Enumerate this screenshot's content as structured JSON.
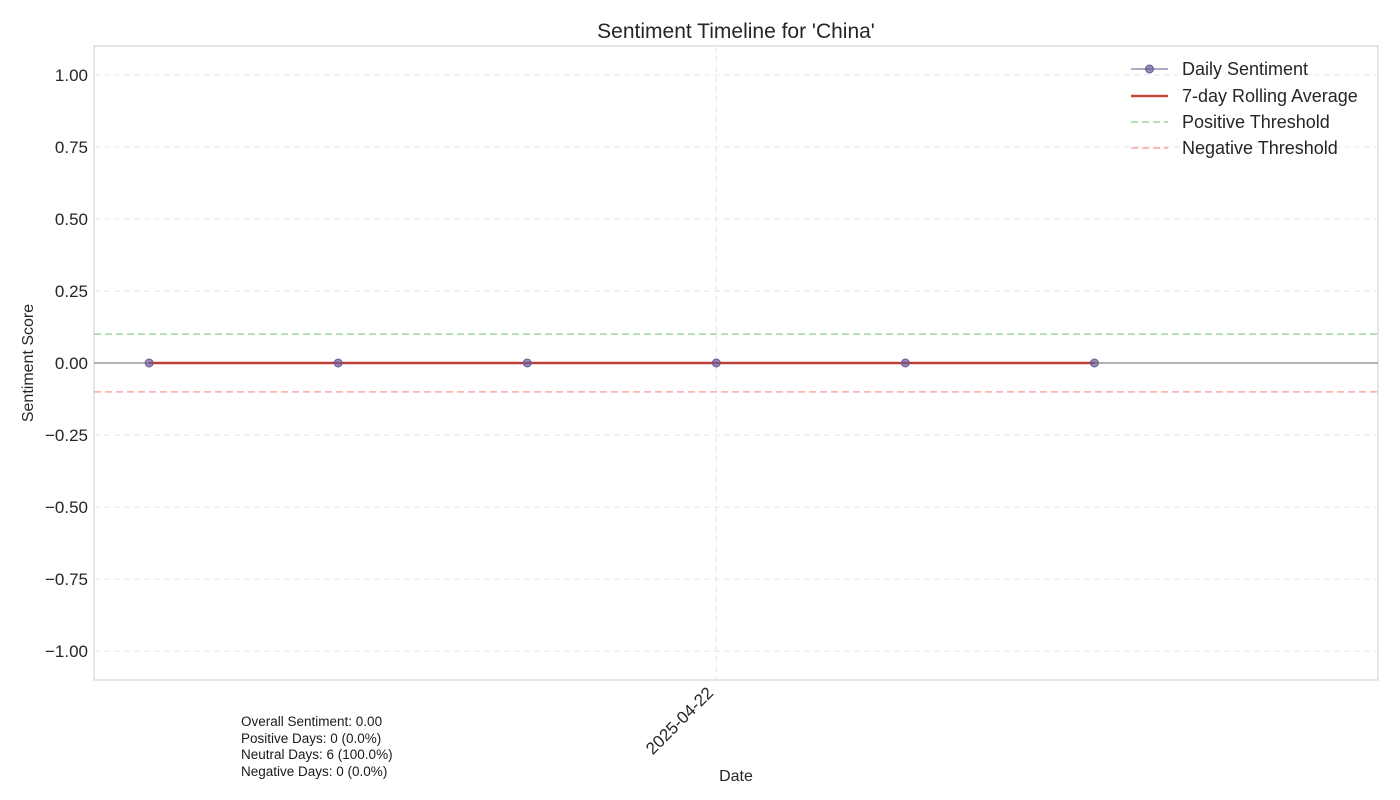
{
  "chart_data": {
    "type": "line",
    "title": "Sentiment Timeline for 'China'",
    "xlabel": "Date",
    "ylabel": "Sentiment Score",
    "ylim": [
      -1.1,
      1.1
    ],
    "xlim": [
      "2025-04-18 17:00",
      "2025-04-25 12:00"
    ],
    "x_ticks": [
      "2025-04-22"
    ],
    "y_ticks": [
      1.0,
      0.75,
      0.5,
      0.25,
      0.0,
      -0.25,
      -0.5,
      -0.75,
      -1.0
    ],
    "y_tick_labels": [
      "1.00",
      "0.75",
      "0.50",
      "0.25",
      "0.00",
      "−0.25",
      "−0.50",
      "−0.75",
      "−1.00"
    ],
    "grid": true,
    "legend_position": "top-right",
    "series": [
      {
        "name": "Daily Sentiment",
        "style": "line-with-markers",
        "color": "#6b5b95",
        "x": [
          "2025-04-19",
          "2025-04-20",
          "2025-04-21",
          "2025-04-22",
          "2025-04-23",
          "2025-04-24"
        ],
        "values": [
          0,
          0,
          0,
          0,
          0,
          0
        ]
      },
      {
        "name": "7-day Rolling Average",
        "style": "solid",
        "color": "#c0392b",
        "x": [
          "2025-04-19",
          "2025-04-20",
          "2025-04-21",
          "2025-04-22",
          "2025-04-23",
          "2025-04-24"
        ],
        "values": [
          0,
          0,
          0,
          0,
          0,
          0
        ]
      },
      {
        "name": "Positive Threshold",
        "style": "dashed",
        "color": "#7ccc7c",
        "value": 0.1
      },
      {
        "name": "Negative Threshold",
        "style": "dashed",
        "color": "#ff8a8a",
        "value": -0.1
      }
    ],
    "zero_line": {
      "value": 0,
      "color": "#999999"
    },
    "annotations": [
      "Overall Sentiment: 0.00",
      "Positive Days: 0 (0.0%)",
      "Neutral Days: 6 (100.0%)",
      "Negative Days: 0 (0.0%)"
    ]
  }
}
